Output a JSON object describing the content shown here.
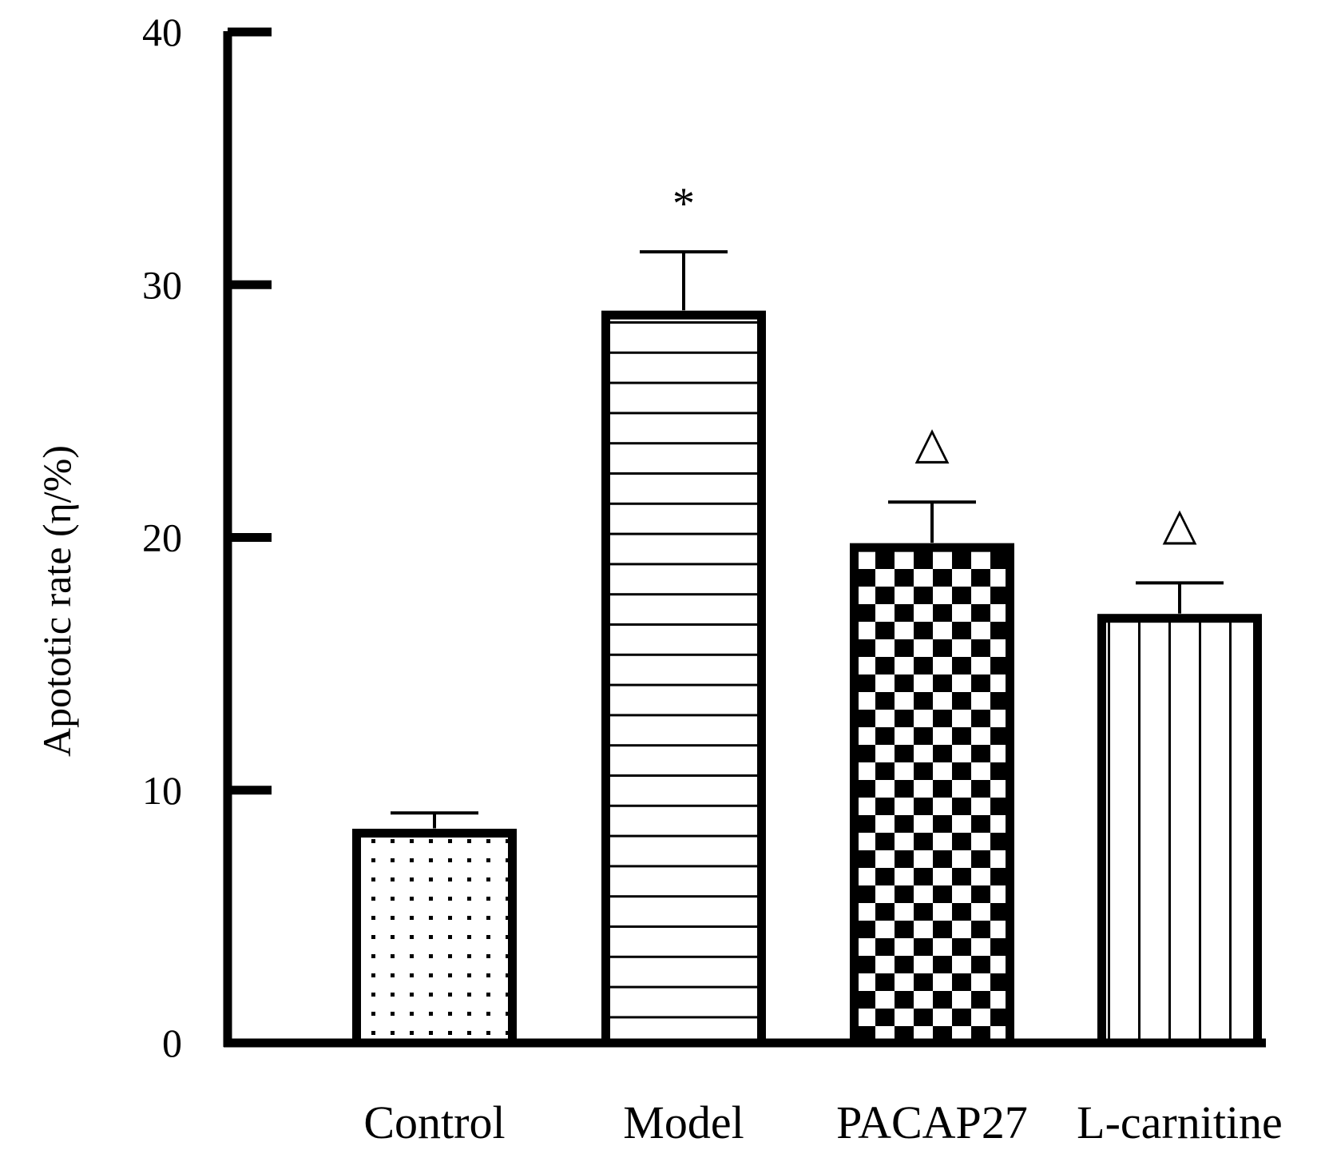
{
  "chart_data": {
    "type": "bar",
    "title": "",
    "xlabel": "",
    "ylabel": "Apototic rate (η/%)",
    "ylim": [
      0,
      40
    ],
    "yticks": [
      0,
      10,
      20,
      30,
      40
    ],
    "ytick_labels": [
      "0",
      "10",
      "20",
      "30",
      "40"
    ],
    "categories": [
      "Control",
      "Model",
      "PACAP27",
      "L-carnitine"
    ],
    "values": [
      8.3,
      28.8,
      19.6,
      16.8
    ],
    "errors": [
      0.8,
      2.5,
      1.8,
      1.4
    ],
    "annotations": [
      "",
      "*",
      "△",
      "△"
    ],
    "fill_patterns": [
      "dots",
      "horizontal-lines",
      "checkerboard",
      "vertical-lines"
    ],
    "grid": false,
    "legend": "none"
  },
  "colors": {
    "ink": "#000000",
    "background": "#ffffff"
  }
}
